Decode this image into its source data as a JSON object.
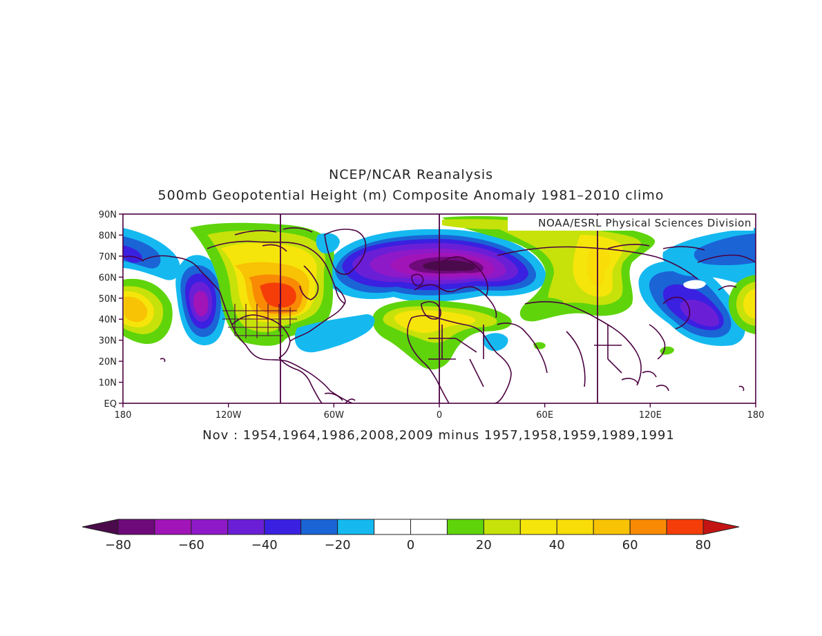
{
  "header": {
    "title": "NCEP/NCAR Reanalysis",
    "subtitle": "500mb Geopotential Height (m) Composite Anomaly 1981–2010 climo"
  },
  "map": {
    "credit": "NOAA/ESRL Physical Sciences Division",
    "lat_labels": [
      "90N",
      "80N",
      "70N",
      "60N",
      "50N",
      "40N",
      "30N",
      "20N",
      "10N",
      "EQ"
    ],
    "lon_labels": [
      "180",
      "120W",
      "60W",
      "0",
      "60E",
      "120E",
      "180"
    ],
    "projection": "cylindrical equidistant",
    "lon_range": [
      -180,
      180
    ],
    "lat_range": [
      0,
      90
    ],
    "meridian_lines_deg": [
      -90,
      0,
      90
    ],
    "coastline_color": "#4a0040",
    "anomaly_centers": [
      {
        "region": "north-atlantic-scandinavia-low",
        "lon": 0,
        "lat": 65,
        "value": -80
      },
      {
        "region": "northeast-pacific-low",
        "lon": -140,
        "lat": 46,
        "value": -50
      },
      {
        "region": "northwest-pacific-low",
        "lon": 150,
        "lat": 43,
        "value": -45
      },
      {
        "region": "great-lakes-high",
        "lon": -90,
        "lat": 50,
        "value": 65
      },
      {
        "region": "dateline-high",
        "lon": -175,
        "lat": 45,
        "value": 45
      },
      {
        "region": "subtropical-atlantic-high",
        "lon": -10,
        "lat": 38,
        "value": 30
      },
      {
        "region": "siberia-high",
        "lon": 90,
        "lat": 60,
        "value": 35
      }
    ]
  },
  "footer": {
    "composite_label": "Nov : 1954,1964,1986,2008,2009 minus 1957,1958,1959,1989,1991"
  },
  "colorbar": {
    "tick_labels": [
      "−80",
      "−60",
      "−40",
      "−20",
      "0",
      "20",
      "40",
      "60",
      "80"
    ],
    "levels": [
      -80,
      -70,
      -60,
      -50,
      -40,
      -30,
      -20,
      -10,
      0,
      10,
      20,
      30,
      40,
      50,
      60,
      70,
      80
    ],
    "colors": [
      "#4b0a4b",
      "#6e0a7a",
      "#a114b8",
      "#8e19c9",
      "#6a1fd6",
      "#3a20e0",
      "#1a64d6",
      "#15b9f0",
      "#ffffff",
      "#ffffff",
      "#5fd40b",
      "#c6e20a",
      "#f6e50a",
      "#f8dd08",
      "#f8c205",
      "#f88a04",
      "#f53d09",
      "#c41313"
    ],
    "over_color": "#c41313",
    "under_color": "#4b0a4b"
  }
}
